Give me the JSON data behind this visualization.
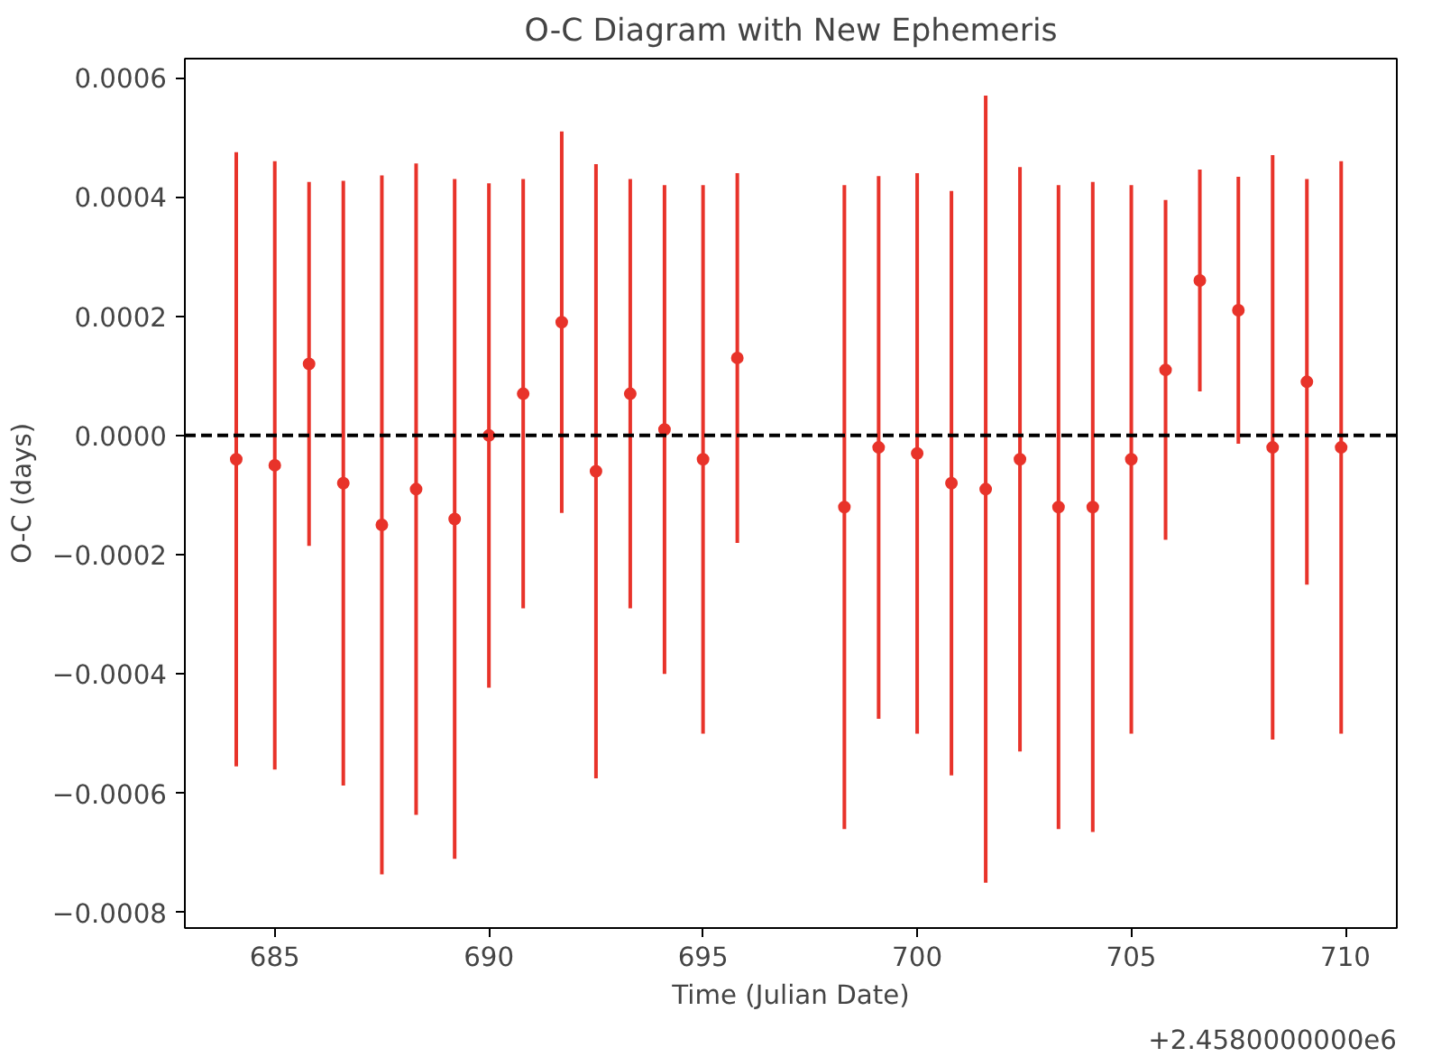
{
  "chart_data": {
    "type": "scatter",
    "title": "O-C Diagram with New Ephemeris",
    "xlabel": "Time (Julian Date)",
    "ylabel": "O-C (days)",
    "annotations": [
      "+2.4580000000e6"
    ],
    "x": [
      684.1,
      685.0,
      685.8,
      686.6,
      687.5,
      688.3,
      689.2,
      690.0,
      690.8,
      691.7,
      692.5,
      693.3,
      694.1,
      695.0,
      695.8,
      698.3,
      699.1,
      700.0,
      700.8,
      701.6,
      702.4,
      703.3,
      704.1,
      705.0,
      705.8,
      706.6,
      707.5,
      708.3,
      709.1,
      709.9
    ],
    "series": [
      {
        "color": "#e8332a",
        "values": [
          -4e-05,
          -5e-05,
          0.00012,
          -8e-05,
          -0.00015,
          -9e-05,
          -0.00014,
          0.0,
          7e-05,
          0.00019,
          -6e-05,
          7e-05,
          1e-05,
          -4e-05,
          0.00013,
          -0.00012,
          -2e-05,
          -3e-05,
          -8e-05,
          -9e-05,
          -4e-05,
          -0.00012,
          -0.00012,
          -4e-05,
          0.00011,
          0.00026,
          0.00021,
          -2e-05,
          9e-05,
          -2e-05
        ],
        "errors": [
          0.000515,
          0.00051,
          0.000305,
          0.000507,
          0.000586,
          0.000546,
          0.00057,
          0.000423,
          0.00036,
          0.00032,
          0.000515,
          0.00036,
          0.00041,
          0.00046,
          0.00031,
          0.00054,
          0.000455,
          0.00047,
          0.00049,
          0.00066,
          0.00049,
          0.00054,
          0.000545,
          0.00046,
          0.000285,
          0.000186,
          0.000224,
          0.00049,
          0.00034,
          0.00048
        ]
      }
    ],
    "xlim": [
      682.9,
      711.2
    ],
    "ylim": [
      -0.000826,
      0.000632
    ],
    "xticks": [
      685,
      690,
      695,
      700,
      705,
      710
    ],
    "yticks": [
      {
        "value": -0.0008,
        "label": "−0.0008"
      },
      {
        "value": -0.0006,
        "label": "−0.0006"
      },
      {
        "value": -0.0004,
        "label": "−0.0004"
      },
      {
        "value": -0.0002,
        "label": "−0.0002"
      },
      {
        "value": 0.0,
        "label": "0.0000"
      },
      {
        "value": 0.0002,
        "label": "0.0002"
      },
      {
        "value": 0.0004,
        "label": "0.0004"
      },
      {
        "value": 0.0006,
        "label": "0.0006"
      }
    ],
    "ref_lines": [
      {
        "axis": "y",
        "value": 0.0,
        "color": "#000000",
        "line_style": "dashed"
      }
    ],
    "grid": false,
    "marker": "circle"
  }
}
